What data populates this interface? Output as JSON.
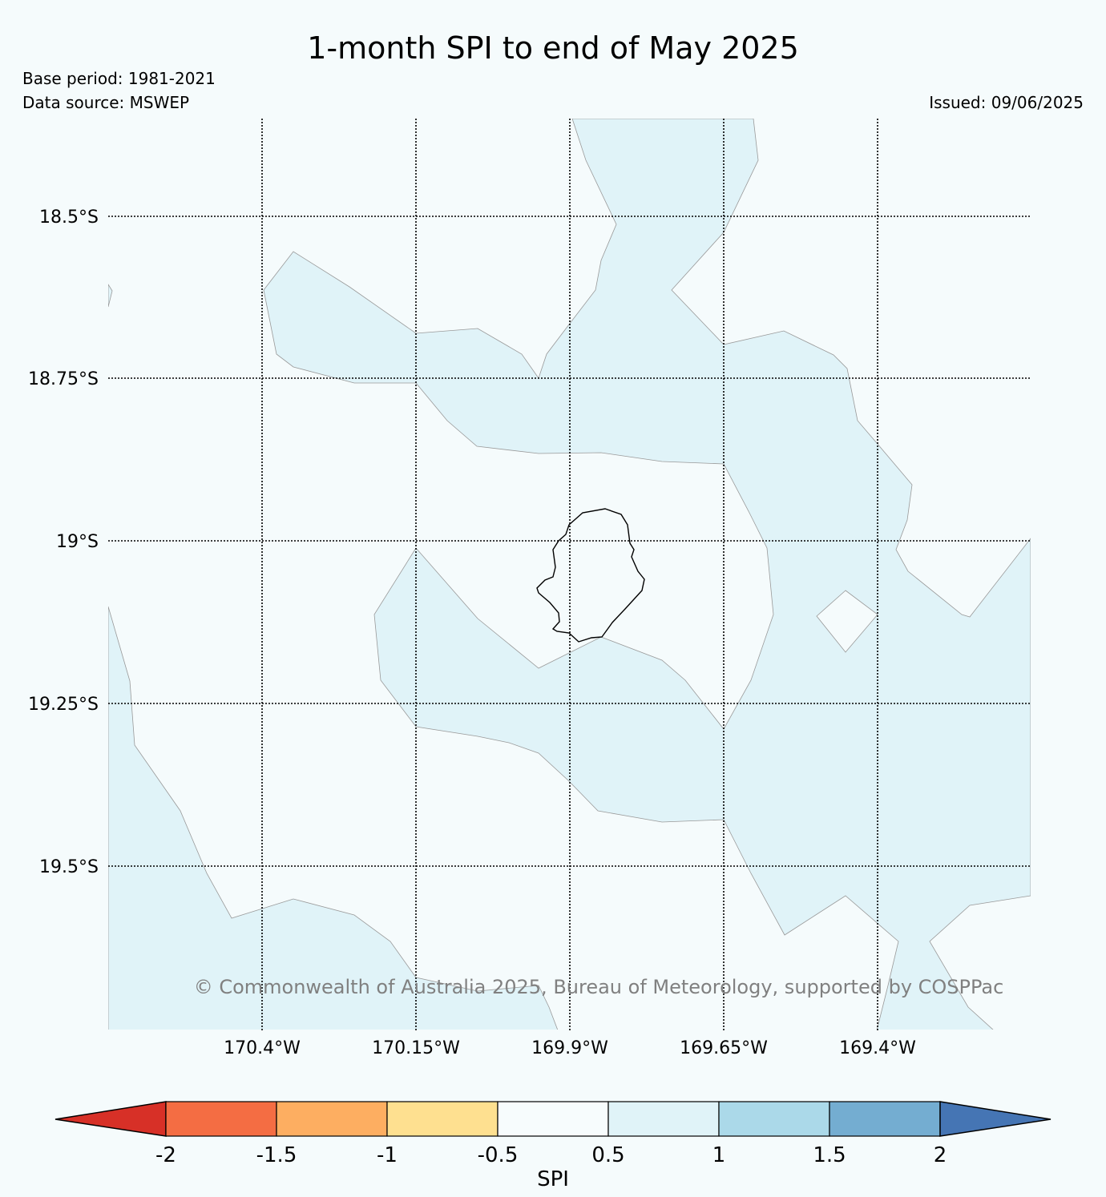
{
  "title": "1-month SPI to end of May 2025",
  "base_period": "Base period: 1981-2021",
  "data_source": "Data source: MSWEP",
  "issued": "Issued: 09/06/2025",
  "copyright": "© Commonwealth of Australia 2025, Bureau of Meteorology, supported by COSPPac",
  "latitude_labels": [
    "18.5°S",
    "18.75°S",
    "19°S",
    "19.25°S",
    "19.5°S"
  ],
  "longitude_labels": [
    "170.4°W",
    "170.15°W",
    "169.9°W",
    "169.65°W",
    "169.4°W"
  ],
  "colorbar": {
    "label": "SPI",
    "ticks": [
      "-2",
      "-1.5",
      "-1",
      "-0.5",
      "0.5",
      "1",
      "1.5",
      "2"
    ],
    "colors": {
      "below_min": "#d73027",
      "bins": [
        "#f46d43",
        "#fdae61",
        "#fee090",
        "#f7fcfd",
        "#e0f3f8",
        "#abd9e9",
        "#74add1"
      ],
      "above_max": "#4575b4"
    }
  },
  "colors": {
    "background": "#f5fbfc",
    "spi_0_5_to_1": "#e0f3f8",
    "grid": "#000000",
    "copyright": "#808080"
  }
}
